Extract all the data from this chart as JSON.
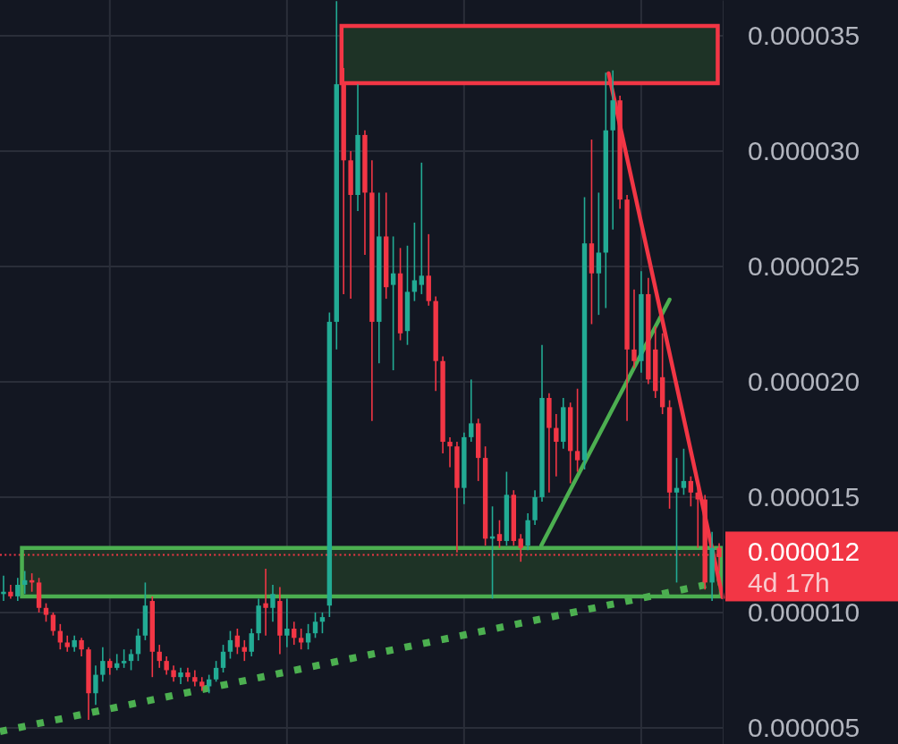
{
  "chart_data": {
    "type": "candlestick",
    "categories": [
      null,
      null,
      null,
      null,
      null,
      null,
      null,
      null,
      null,
      null,
      null,
      null,
      null,
      null,
      null,
      null,
      null,
      null,
      null,
      null,
      null,
      null,
      null,
      null,
      null,
      null,
      null,
      null,
      null,
      null,
      null,
      null,
      null,
      null,
      null,
      null,
      null,
      null,
      null,
      null,
      null,
      null,
      null,
      null,
      null,
      null,
      null,
      null,
      null,
      null,
      null,
      null,
      null,
      null,
      null,
      null,
      null,
      null,
      null,
      null,
      null,
      null,
      null,
      null,
      null,
      null,
      null,
      null,
      null,
      null,
      null,
      null,
      null,
      null,
      null,
      null,
      null,
      null,
      null,
      null,
      null,
      null,
      null,
      null,
      null,
      null,
      null,
      null,
      null,
      null,
      null,
      null,
      null,
      null,
      null,
      null,
      null,
      null,
      null,
      null,
      null,
      null
    ],
    "ohlc": [
      [
        1.08e-05,
        1.16e-05,
        1.05e-05,
        1.09e-05
      ],
      [
        1.09e-05,
        1.12e-05,
        1.06e-05,
        1.07e-05
      ],
      [
        1.07e-05,
        1.15e-05,
        1.05e-05,
        1.12e-05
      ],
      [
        1.12e-05,
        1.18e-05,
        1.08e-05,
        1.14e-05
      ],
      [
        1.14e-05,
        1.17e-05,
        1.09e-05,
        1.13e-05
      ],
      [
        1.13e-05,
        1.15e-05,
        1e-05,
        1.02e-05
      ],
      [
        1.02e-05,
        1.04e-05,
        9.6e-06,
        9.9e-06
      ],
      [
        9.9e-06,
        1e-05,
        9e-06,
        9.2e-06
      ],
      [
        9.2e-06,
        9.5e-06,
        8.4e-06,
        8.7e-06
      ],
      [
        8.7e-06,
        9e-06,
        8.3e-06,
        8.5e-06
      ],
      [
        8.5e-06,
        9e-06,
        8.3e-06,
        8.8e-06
      ],
      [
        8.8e-06,
        8.9e-06,
        8.1e-06,
        8.4e-06
      ],
      [
        8.4e-06,
        8.5e-06,
        5.35e-06,
        6.5e-06
      ],
      [
        6.5e-06,
        7.7e-06,
        6e-06,
        7.3e-06
      ],
      [
        7.3e-06,
        8.5e-06,
        7e-06,
        7.9e-06
      ],
      [
        7.9e-06,
        8e-06,
        7.3e-06,
        7.6e-06
      ],
      [
        7.6e-06,
        8.2e-06,
        7.5e-06,
        7.8e-06
      ],
      [
        7.8e-06,
        8.4e-06,
        7.6e-06,
        7.9e-06
      ],
      [
        7.9e-06,
        8.4e-06,
        7.5e-06,
        8.2e-06
      ],
      [
        8.2e-06,
        9.3e-06,
        7.9e-06,
        9e-06
      ],
      [
        9e-06,
        1.13e-05,
        8.8e-06,
        1.03e-05
      ],
      [
        1.05e-05,
        1.07e-05,
        7.2e-06,
        8.3e-06
      ],
      [
        8.3e-06,
        8.6e-06,
        7.6e-06,
        7.9e-06
      ],
      [
        7.9e-06,
        8.1e-06,
        7.3e-06,
        7.5e-06
      ],
      [
        7.5e-06,
        7.7e-06,
        7e-06,
        7.2e-06
      ],
      [
        7.2e-06,
        7.6e-06,
        6.9e-06,
        7.4e-06
      ],
      [
        7.4e-06,
        7.6e-06,
        7e-06,
        7.2e-06
      ],
      [
        7.2e-06,
        7.5e-06,
        6.8e-06,
        7e-06
      ],
      [
        7e-06,
        7.2e-06,
        6.6e-06,
        6.8e-06
      ],
      [
        6.8e-06,
        7.3e-06,
        6.5e-06,
        7.1e-06
      ],
      [
        7.1e-06,
        7.9e-06,
        7e-06,
        7.6e-06
      ],
      [
        7.6e-06,
        8.6e-06,
        7.4e-06,
        8.3e-06
      ],
      [
        8.3e-06,
        9.2e-06,
        8e-06,
        8.8e-06
      ],
      [
        9e-06,
        9.3e-06,
        8.2e-06,
        8.5e-06
      ],
      [
        8.5e-06,
        8.8e-06,
        7.9e-06,
        8.3e-06
      ],
      [
        8.3e-06,
        9.3e-06,
        8.1e-06,
        9.1e-06
      ],
      [
        9.1e-06,
        1.06e-05,
        8.8e-06,
        1.03e-05
      ],
      [
        1.04e-05,
        1.19e-05,
        9e-06,
        1.02e-05
      ],
      [
        1.02e-05,
        1.12e-05,
        9.6e-06,
        1.08e-05
      ],
      [
        1.05e-05,
        1.11e-05,
        8.2e-06,
        9e-06
      ],
      [
        9e-06,
        1.06e-05,
        8.5e-06,
        9.3e-06
      ],
      [
        9.3e-06,
        9.6e-06,
        8.6e-06,
        8.9e-06
      ],
      [
        8.9e-06,
        9.3e-06,
        8.4e-06,
        8.7e-06
      ],
      [
        8.7e-06,
        9.5e-06,
        8.4e-06,
        9.1e-06
      ],
      [
        9.1e-06,
        1e-05,
        8.9e-06,
        9.6e-06
      ],
      [
        9.6e-06,
        1e-05,
        9.1e-06,
        9.8e-06
      ],
      [
        1.03e-05,
        2.3e-05,
        9.8e-06,
        2.26e-05
      ],
      [
        2.26e-05,
        3.65e-05,
        2.14e-05,
        3.29e-05
      ],
      [
        3.29e-05,
        3.36e-05,
        2.38e-05,
        2.96e-05
      ],
      [
        2.96e-05,
        3e-05,
        2.36e-05,
        2.81e-05
      ],
      [
        2.81e-05,
        3.29e-05,
        2.74e-05,
        3.07e-05
      ],
      [
        3.07e-05,
        3.09e-05,
        2.55e-05,
        2.82e-05
      ],
      [
        2.82e-05,
        2.96e-05,
        1.83e-05,
        2.26e-05
      ],
      [
        2.26e-05,
        2.82e-05,
        2.08e-05,
        2.63e-05
      ],
      [
        2.63e-05,
        2.82e-05,
        2.36e-05,
        2.41e-05
      ],
      [
        2.42e-05,
        2.63e-05,
        2.05e-05,
        2.47e-05
      ],
      [
        2.47e-05,
        2.58e-05,
        2.18e-05,
        2.21e-05
      ],
      [
        2.22e-05,
        2.59e-05,
        2.16e-05,
        2.39e-05
      ],
      [
        2.39e-05,
        2.69e-05,
        2.35e-05,
        2.44e-05
      ],
      [
        2.42e-05,
        2.95e-05,
        2.38e-05,
        2.46e-05
      ],
      [
        2.46e-05,
        2.64e-05,
        2.33e-05,
        2.35e-05
      ],
      [
        2.35e-05,
        2.37e-05,
        1.96e-05,
        2.09e-05
      ],
      [
        2.09e-05,
        2.11e-05,
        1.69e-05,
        1.74e-05
      ],
      [
        1.74e-05,
        1.76e-05,
        1.63e-05,
        1.72e-05
      ],
      [
        1.72e-05,
        1.74e-05,
        1.26e-05,
        1.54e-05
      ],
      [
        1.54e-05,
        1.78e-05,
        1.47e-05,
        1.76e-05
      ],
      [
        1.76e-05,
        2.01e-05,
        1.74e-05,
        1.82e-05
      ],
      [
        1.82e-05,
        1.84e-05,
        1.57e-05,
        1.67e-05
      ],
      [
        1.67e-05,
        1.72e-05,
        1.29e-05,
        1.32e-05
      ],
      [
        1.32e-05,
        1.46e-05,
        1.06e-05,
        1.33e-05
      ],
      [
        1.34e-05,
        1.4e-05,
        1.28e-05,
        1.31e-05
      ],
      [
        1.31e-05,
        1.61e-05,
        1.29e-05,
        1.51e-05
      ],
      [
        1.51e-05,
        1.53e-05,
        1.29e-05,
        1.31e-05
      ],
      [
        1.32e-05,
        1.34e-05,
        1.22e-05,
        1.28e-05
      ],
      [
        1.29e-05,
        1.43e-05,
        1.27e-05,
        1.4e-05
      ],
      [
        1.4e-05,
        1.53e-05,
        1.38e-05,
        1.5e-05
      ],
      [
        1.5e-05,
        2.16e-05,
        1.48e-05,
        1.93e-05
      ],
      [
        1.93e-05,
        1.95e-05,
        1.52e-05,
        1.8e-05
      ],
      [
        1.8e-05,
        1.86e-05,
        1.59e-05,
        1.74e-05
      ],
      [
        1.74e-05,
        1.93e-05,
        1.71e-05,
        1.89e-05
      ],
      [
        1.89e-05,
        1.91e-05,
        1.56e-05,
        1.7e-05
      ],
      [
        1.7e-05,
        1.97e-05,
        1.61e-05,
        1.66e-05
      ],
      [
        1.66e-05,
        2.8e-05,
        1.62e-05,
        2.6e-05
      ],
      [
        2.6e-05,
        3.05e-05,
        2.25e-05,
        2.47e-05
      ],
      [
        2.47e-05,
        2.82e-05,
        2.29e-05,
        2.56e-05
      ],
      [
        2.56e-05,
        3.34e-05,
        2.32e-05,
        3.09e-05
      ],
      [
        3.09e-05,
        3.35e-05,
        2.66e-05,
        3.22e-05
      ],
      [
        3.22e-05,
        3.24e-05,
        2.75e-05,
        2.79e-05
      ],
      [
        2.79e-05,
        2.81e-05,
        1.83e-05,
        2.14e-05
      ],
      [
        2.14e-05,
        2.4e-05,
        2.06e-05,
        2.09e-05
      ],
      [
        2.09e-05,
        2.48e-05,
        2.04e-05,
        2.38e-05
      ],
      [
        2.38e-05,
        2.45e-05,
        1.99e-05,
        2.01e-05
      ],
      [
        2.14e-05,
        2.24e-05,
        1.93e-05,
        1.96e-05
      ],
      [
        2.02e-05,
        2.21e-05,
        1.86e-05,
        1.89e-05
      ],
      [
        1.89e-05,
        1.92e-05,
        1.45e-05,
        1.52e-05
      ],
      [
        1.52e-05,
        1.67e-05,
        1.13e-05,
        1.54e-05
      ],
      [
        1.54e-05,
        1.71e-05,
        1.51e-05,
        1.57e-05
      ],
      [
        1.57e-05,
        1.59e-05,
        1.46e-05,
        1.52e-05
      ],
      [
        1.52e-05,
        1.54e-05,
        1.28e-05,
        1.49e-05
      ],
      [
        1.49e-05,
        1.51e-05,
        1.1e-05,
        1.13e-05
      ],
      [
        1.13e-05,
        1.35e-05,
        1.05e-05,
        1.28e-05
      ],
      [
        1.28e-05,
        1.3e-05,
        1.18e-05,
        1.24e-05
      ]
    ],
    "bands": [
      {
        "axis": "y",
        "from": 1.07e-05,
        "to": 1.28e-05,
        "color": "#1e3326"
      }
    ],
    "ref_lines": [
      {
        "axis": "y",
        "value": 1.25e-05,
        "label": "0.000012",
        "color": "#f23645",
        "line_style": "dotted"
      }
    ],
    "annotations": [
      "4d 17h"
    ],
    "ylim": [
      4.3e-06,
      3.655e-05
    ],
    "yticks": [
      {
        "value": 5e-06,
        "label": "0.000005"
      },
      {
        "value": 1e-05,
        "label": "0.000010"
      },
      {
        "value": 1.5e-05,
        "label": "0.000015"
      },
      {
        "value": 2e-05,
        "label": "0.000020"
      },
      {
        "value": 2.5e-05,
        "label": "0.000025"
      },
      {
        "value": 3e-05,
        "label": "0.000030"
      },
      {
        "value": 3.5e-05,
        "label": "0.000035"
      }
    ],
    "tick_labels": "y",
    "grid": true
  }
}
